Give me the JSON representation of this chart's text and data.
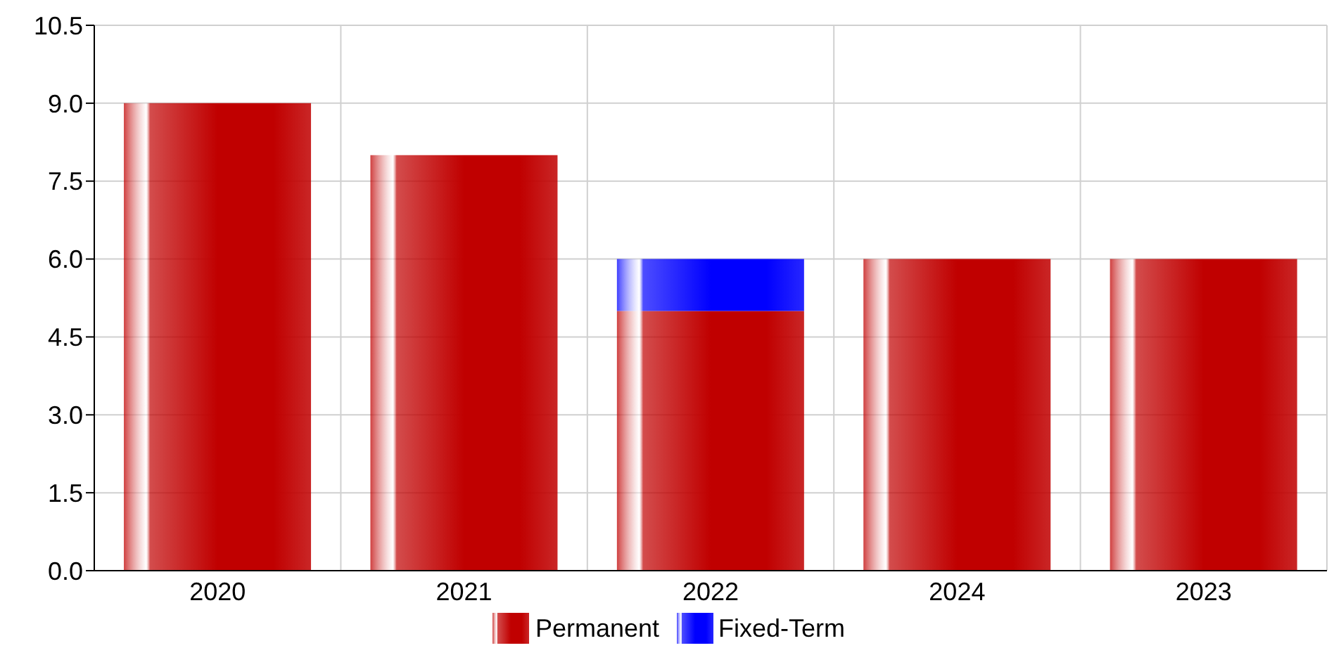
{
  "chart_data": {
    "type": "bar",
    "stacked": true,
    "categories": [
      "2020",
      "2021",
      "2022",
      "2024",
      "2023"
    ],
    "series": [
      {
        "name": "Permanent",
        "color": "#c00000",
        "values": [
          9.0,
          8.0,
          5.0,
          6.0,
          6.0
        ]
      },
      {
        "name": "Fixed-Term",
        "color": "#0000ff",
        "values": [
          null,
          null,
          1.0,
          null,
          null
        ]
      }
    ],
    "ylim": [
      0,
      10.5
    ],
    "yticks": [
      {
        "value": 0,
        "label": "0.0"
      },
      1.5,
      {
        "value": 3,
        "label": "3.0"
      },
      4.5,
      {
        "value": 6,
        "label": "6.0"
      },
      7.5,
      {
        "value": 9,
        "label": "9.0"
      },
      10.5
    ],
    "grid": true,
    "legend": "bottom"
  }
}
